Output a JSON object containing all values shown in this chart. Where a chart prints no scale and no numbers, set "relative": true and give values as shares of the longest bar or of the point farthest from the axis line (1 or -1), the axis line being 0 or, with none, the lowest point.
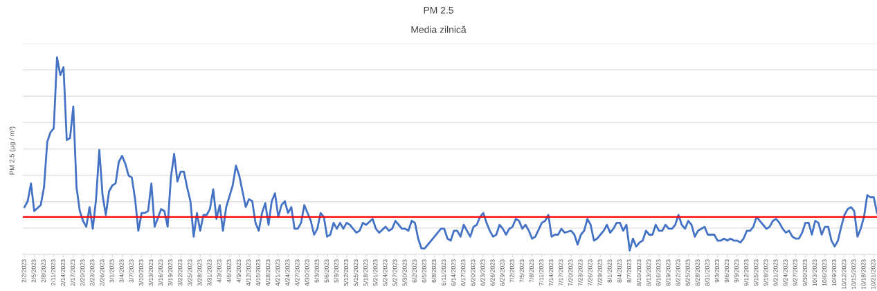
{
  "chart_data": {
    "type": "line",
    "title": "PM 2.5",
    "subtitle": "Media zilnică",
    "ylabel": "PM 2.5 (µg / m³)",
    "relative": true,
    "grid": "y",
    "legend": false,
    "marker": "none",
    "line_style": "solid",
    "xlim": [
      "2023-02-01T12:00",
      "2023-10-22"
    ],
    "xticks": [
      {
        "value": "2023-02-02",
        "label": "2/2/2023"
      },
      {
        "value": "2023-02-05",
        "label": "2/5/2023"
      },
      {
        "value": "2023-02-08",
        "label": "2/8/2023"
      },
      {
        "value": "2023-02-11",
        "label": "2/11/2023"
      },
      {
        "value": "2023-02-14",
        "label": "2/14/2023"
      },
      {
        "value": "2023-02-17",
        "label": "2/17/2023"
      },
      {
        "value": "2023-02-20",
        "label": "2/20/2023"
      },
      {
        "value": "2023-02-23",
        "label": "2/23/2023"
      },
      {
        "value": "2023-02-26",
        "label": "2/26/2023"
      },
      {
        "value": "2023-03-01",
        "label": "3/1/2023"
      },
      {
        "value": "2023-03-04",
        "label": "3/4/2023"
      },
      {
        "value": "2023-03-07",
        "label": "3/7/2023"
      },
      {
        "value": "2023-03-10",
        "label": "3/10/2023"
      },
      {
        "value": "2023-03-13",
        "label": "3/13/2023"
      },
      {
        "value": "2023-03-16",
        "label": "3/16/2023"
      },
      {
        "value": "2023-03-19",
        "label": "3/19/2023"
      },
      {
        "value": "2023-03-22",
        "label": "3/22/2023"
      },
      {
        "value": "2023-03-25",
        "label": "3/25/2023"
      },
      {
        "value": "2023-03-28",
        "label": "3/28/2023"
      },
      {
        "value": "2023-03-31",
        "label": "3/31/2023"
      },
      {
        "value": "2023-04-03",
        "label": "4/3/2023"
      },
      {
        "value": "2023-04-06",
        "label": "4/6/2023"
      },
      {
        "value": "2023-04-09",
        "label": "4/9/2023"
      },
      {
        "value": "2023-04-12",
        "label": "4/12/2023"
      },
      {
        "value": "2023-04-15",
        "label": "4/15/2023"
      },
      {
        "value": "2023-04-18",
        "label": "4/18/2023"
      },
      {
        "value": "2023-04-21",
        "label": "4/21/2023"
      },
      {
        "value": "2023-04-24",
        "label": "4/24/2023"
      },
      {
        "value": "2023-04-27",
        "label": "4/27/2023"
      },
      {
        "value": "2023-04-30",
        "label": "4/30/2023"
      },
      {
        "value": "2023-05-03",
        "label": "5/3/2023"
      },
      {
        "value": "2023-05-06",
        "label": "5/6/2023"
      },
      {
        "value": "2023-05-09",
        "label": "5/9/2023"
      },
      {
        "value": "2023-05-12",
        "label": "5/12/2023"
      },
      {
        "value": "2023-05-15",
        "label": "5/15/2023"
      },
      {
        "value": "2023-05-18",
        "label": "5/18/2023"
      },
      {
        "value": "2023-05-21",
        "label": "5/21/2023"
      },
      {
        "value": "2023-05-24",
        "label": "5/24/2023"
      },
      {
        "value": "2023-05-27",
        "label": "5/27/2023"
      },
      {
        "value": "2023-05-30",
        "label": "5/30/2023"
      },
      {
        "value": "2023-06-02",
        "label": "6/2/2023"
      },
      {
        "value": "2023-06-05",
        "label": "6/5/2023"
      },
      {
        "value": "2023-06-08",
        "label": "6/8/2023"
      },
      {
        "value": "2023-06-11",
        "label": "6/11/2023"
      },
      {
        "value": "2023-06-14",
        "label": "6/14/2023"
      },
      {
        "value": "2023-06-17",
        "label": "6/17/2023"
      },
      {
        "value": "2023-06-20",
        "label": "6/20/2023"
      },
      {
        "value": "2023-06-23",
        "label": "6/23/2023"
      },
      {
        "value": "2023-06-26",
        "label": "6/26/2023"
      },
      {
        "value": "2023-06-29",
        "label": "6/29/2023"
      },
      {
        "value": "2023-07-02",
        "label": "7/2/2023"
      },
      {
        "value": "2023-07-05",
        "label": "7/5/2023"
      },
      {
        "value": "2023-07-08",
        "label": "7/8/2023"
      },
      {
        "value": "2023-07-11",
        "label": "7/11/2023"
      },
      {
        "value": "2023-07-14",
        "label": "7/14/2023"
      },
      {
        "value": "2023-07-17",
        "label": "7/17/2023"
      },
      {
        "value": "2023-07-20",
        "label": "7/20/2023"
      },
      {
        "value": "2023-07-23",
        "label": "7/23/2023"
      },
      {
        "value": "2023-07-26",
        "label": "7/26/2023"
      },
      {
        "value": "2023-07-29",
        "label": "7/29/2023"
      },
      {
        "value": "2023-08-01",
        "label": "8/1/2023"
      },
      {
        "value": "2023-08-04",
        "label": "8/4/2023"
      },
      {
        "value": "2023-08-07",
        "label": "8/7/2023"
      },
      {
        "value": "2023-08-10",
        "label": "8/10/2023"
      },
      {
        "value": "2023-08-13",
        "label": "8/13/2023"
      },
      {
        "value": "2023-08-16",
        "label": "8/16/2023"
      },
      {
        "value": "2023-08-19",
        "label": "8/19/2023"
      },
      {
        "value": "2023-08-22",
        "label": "8/22/2023"
      },
      {
        "value": "2023-08-25",
        "label": "8/25/2023"
      },
      {
        "value": "2023-08-28",
        "label": "8/28/2023"
      },
      {
        "value": "2023-08-31",
        "label": "8/31/2023"
      },
      {
        "value": "2023-09-03",
        "label": "9/3/2023"
      },
      {
        "value": "2023-09-06",
        "label": "9/6/2023"
      },
      {
        "value": "2023-09-09",
        "label": "9/9/2023"
      },
      {
        "value": "2023-09-12",
        "label": "9/12/2023"
      },
      {
        "value": "2023-09-15",
        "label": "9/15/2023"
      },
      {
        "value": "2023-09-18",
        "label": "9/18/2023"
      },
      {
        "value": "2023-09-21",
        "label": "9/21/2023"
      },
      {
        "value": "2023-09-24",
        "label": "9/24/2023"
      },
      {
        "value": "2023-09-27",
        "label": "9/27/2023"
      },
      {
        "value": "2023-09-30",
        "label": "9/30/2023"
      },
      {
        "value": "2023-10-03",
        "label": "10/3/2023"
      },
      {
        "value": "2023-10-06",
        "label": "10/6/2023"
      },
      {
        "value": "2023-10-09",
        "label": "10/9/2023"
      },
      {
        "value": "2023-10-12",
        "label": "10/12/2023"
      },
      {
        "value": "2023-10-15",
        "label": "10/15/2023"
      },
      {
        "value": "2023-10-18",
        "label": "10/18/2023"
      },
      {
        "value": "2023-10-21",
        "label": "10/21/2023"
      }
    ],
    "ref_lines": [
      {
        "axis": "y",
        "value": 0.19,
        "color": "#ff0000",
        "line_style": "solid"
      }
    ],
    "series": [
      {
        "color": "#4472c4",
        "x": [
          "2023-02-02",
          "2023-02-03",
          "2023-02-04",
          "2023-02-05",
          "2023-02-07",
          "2023-02-08",
          "2023-02-09",
          "2023-02-10",
          "2023-02-11",
          "2023-02-12",
          "2023-02-13",
          "2023-02-14",
          "2023-02-15",
          "2023-02-16",
          "2023-02-17",
          "2023-02-18",
          "2023-02-19",
          "2023-02-20",
          "2023-02-21",
          "2023-02-22",
          "2023-02-23",
          "2023-02-24",
          "2023-02-25",
          "2023-02-26",
          "2023-02-27",
          "2023-02-28",
          "2023-03-01",
          "2023-03-02",
          "2023-03-03",
          "2023-03-04",
          "2023-03-05",
          "2023-03-06",
          "2023-03-07",
          "2023-03-08",
          "2023-03-09",
          "2023-03-10",
          "2023-03-11",
          "2023-03-12",
          "2023-03-13",
          "2023-03-14",
          "2023-03-16",
          "2023-03-17",
          "2023-03-18",
          "2023-03-19",
          "2023-03-20",
          "2023-03-21",
          "2023-03-22",
          "2023-03-23",
          "2023-03-24",
          "2023-03-25",
          "2023-03-26",
          "2023-03-27",
          "2023-03-28",
          "2023-03-29",
          "2023-03-30",
          "2023-03-31",
          "2023-04-01",
          "2023-04-02",
          "2023-04-03",
          "2023-04-04",
          "2023-04-05",
          "2023-04-07",
          "2023-04-08",
          "2023-04-09",
          "2023-04-11",
          "2023-04-12",
          "2023-04-13",
          "2023-04-14",
          "2023-04-15",
          "2023-04-16",
          "2023-04-17",
          "2023-04-18",
          "2023-04-19",
          "2023-04-20",
          "2023-04-21",
          "2023-04-22",
          "2023-04-23",
          "2023-04-24",
          "2023-04-25",
          "2023-04-26",
          "2023-04-27",
          "2023-04-28",
          "2023-04-29",
          "2023-05-01",
          "2023-05-02",
          "2023-05-03",
          "2023-05-04",
          "2023-05-05",
          "2023-05-06",
          "2023-05-07",
          "2023-05-08",
          "2023-05-09",
          "2023-05-10",
          "2023-05-11",
          "2023-05-12",
          "2023-05-13",
          "2023-05-15",
          "2023-05-16",
          "2023-05-17",
          "2023-05-18",
          "2023-05-20",
          "2023-05-21",
          "2023-05-22",
          "2023-05-24",
          "2023-05-25",
          "2023-05-26",
          "2023-05-27",
          "2023-05-28",
          "2023-05-29",
          "2023-05-30",
          "2023-05-31",
          "2023-06-01",
          "2023-06-02",
          "2023-06-03",
          "2023-06-04",
          "2023-06-05",
          "2023-06-06",
          "2023-06-07",
          "2023-06-08",
          "2023-06-10",
          "2023-06-11",
          "2023-06-12",
          "2023-06-13",
          "2023-06-14",
          "2023-06-15",
          "2023-06-16",
          "2023-06-17",
          "2023-06-18",
          "2023-06-19",
          "2023-06-20",
          "2023-06-21",
          "2023-06-22",
          "2023-06-23",
          "2023-06-24",
          "2023-06-25",
          "2023-06-26",
          "2023-06-27",
          "2023-06-28",
          "2023-06-29",
          "2023-06-30",
          "2023-07-01",
          "2023-07-02",
          "2023-07-03",
          "2023-07-04",
          "2023-07-05",
          "2023-07-06",
          "2023-07-07",
          "2023-07-08",
          "2023-07-09",
          "2023-07-11",
          "2023-07-12",
          "2023-07-13",
          "2023-07-14",
          "2023-07-15",
          "2023-07-16",
          "2023-07-17",
          "2023-07-18",
          "2023-07-20",
          "2023-07-21",
          "2023-07-22",
          "2023-07-23",
          "2023-07-24",
          "2023-07-25",
          "2023-07-26",
          "2023-07-27",
          "2023-07-28",
          "2023-07-29",
          "2023-07-30",
          "2023-07-31",
          "2023-08-01",
          "2023-08-02",
          "2023-08-03",
          "2023-08-04",
          "2023-08-05",
          "2023-08-06",
          "2023-08-07",
          "2023-08-08",
          "2023-08-09",
          "2023-08-10",
          "2023-08-11",
          "2023-08-12",
          "2023-08-13",
          "2023-08-14",
          "2023-08-15",
          "2023-08-16",
          "2023-08-17",
          "2023-08-18",
          "2023-08-19",
          "2023-08-20",
          "2023-08-21",
          "2023-08-22",
          "2023-08-23",
          "2023-08-24",
          "2023-08-25",
          "2023-08-26",
          "2023-08-27",
          "2023-08-28",
          "2023-08-29",
          "2023-08-30",
          "2023-08-31",
          "2023-09-01",
          "2023-09-02",
          "2023-09-03",
          "2023-09-04",
          "2023-09-05",
          "2023-09-06",
          "2023-09-07",
          "2023-09-08",
          "2023-09-09",
          "2023-09-10",
          "2023-09-11",
          "2023-09-12",
          "2023-09-13",
          "2023-09-14",
          "2023-09-15",
          "2023-09-16",
          "2023-09-17",
          "2023-09-18",
          "2023-09-19",
          "2023-09-20",
          "2023-09-21",
          "2023-09-22",
          "2023-09-23",
          "2023-09-24",
          "2023-09-25",
          "2023-09-26",
          "2023-09-27",
          "2023-09-28",
          "2023-09-29",
          "2023-09-30",
          "2023-10-01",
          "2023-10-02",
          "2023-10-03",
          "2023-10-04",
          "2023-10-05",
          "2023-10-06",
          "2023-10-07",
          "2023-10-08",
          "2023-10-09",
          "2023-10-10",
          "2023-10-11",
          "2023-10-12",
          "2023-10-13",
          "2023-10-14",
          "2023-10-15",
          "2023-10-16",
          "2023-10-17",
          "2023-10-18",
          "2023-10-19",
          "2023-10-20",
          "2023-10-21",
          "2023-10-22"
        ],
        "values": [
          0.24,
          0.27,
          0.36,
          0.22,
          0.25,
          0.34,
          0.57,
          0.62,
          0.64,
          1.0,
          0.91,
          0.95,
          0.58,
          0.59,
          0.75,
          0.34,
          0.22,
          0.17,
          0.14,
          0.24,
          0.13,
          0.28,
          0.53,
          0.3,
          0.2,
          0.32,
          0.35,
          0.36,
          0.47,
          0.5,
          0.46,
          0.4,
          0.39,
          0.28,
          0.12,
          0.21,
          0.21,
          0.22,
          0.36,
          0.14,
          0.23,
          0.22,
          0.14,
          0.39,
          0.51,
          0.37,
          0.42,
          0.42,
          0.34,
          0.27,
          0.09,
          0.21,
          0.12,
          0.2,
          0.2,
          0.23,
          0.33,
          0.18,
          0.25,
          0.12,
          0.24,
          0.35,
          0.45,
          0.4,
          0.24,
          0.28,
          0.27,
          0.16,
          0.12,
          0.21,
          0.26,
          0.15,
          0.27,
          0.31,
          0.19,
          0.25,
          0.27,
          0.21,
          0.24,
          0.13,
          0.13,
          0.16,
          0.25,
          0.17,
          0.1,
          0.13,
          0.21,
          0.19,
          0.09,
          0.1,
          0.16,
          0.13,
          0.16,
          0.13,
          0.16,
          0.15,
          0.11,
          0.12,
          0.16,
          0.15,
          0.18,
          0.13,
          0.11,
          0.14,
          0.12,
          0.13,
          0.17,
          0.15,
          0.13,
          0.13,
          0.12,
          0.17,
          0.16,
          0.08,
          0.03,
          0.03,
          0.05,
          0.07,
          0.09,
          0.13,
          0.13,
          0.08,
          0.07,
          0.12,
          0.12,
          0.09,
          0.15,
          0.12,
          0.09,
          0.14,
          0.15,
          0.19,
          0.21,
          0.16,
          0.12,
          0.09,
          0.1,
          0.15,
          0.13,
          0.1,
          0.13,
          0.14,
          0.18,
          0.17,
          0.13,
          0.15,
          0.12,
          0.08,
          0.09,
          0.16,
          0.17,
          0.2,
          0.09,
          0.1,
          0.1,
          0.13,
          0.11,
          0.12,
          0.1,
          0.05,
          0.1,
          0.12,
          0.18,
          0.15,
          0.07,
          0.08,
          0.1,
          0.12,
          0.15,
          0.11,
          0.13,
          0.16,
          0.16,
          0.12,
          0.15,
          0.02,
          0.08,
          0.04,
          0.06,
          0.07,
          0.12,
          0.1,
          0.1,
          0.15,
          0.12,
          0.12,
          0.15,
          0.13,
          0.13,
          0.15,
          0.2,
          0.15,
          0.13,
          0.17,
          0.15,
          0.09,
          0.12,
          0.13,
          0.14,
          0.1,
          0.1,
          0.1,
          0.07,
          0.07,
          0.08,
          0.07,
          0.08,
          0.07,
          0.07,
          0.06,
          0.08,
          0.12,
          0.12,
          0.14,
          0.19,
          0.17,
          0.15,
          0.13,
          0.14,
          0.17,
          0.18,
          0.16,
          0.13,
          0.11,
          0.12,
          0.09,
          0.08,
          0.08,
          0.11,
          0.16,
          0.16,
          0.1,
          0.17,
          0.16,
          0.1,
          0.14,
          0.14,
          0.07,
          0.04,
          0.07,
          0.14,
          0.2,
          0.23,
          0.24,
          0.22,
          0.09,
          0.13,
          0.19,
          0.3,
          0.29,
          0.29,
          0.21
        ]
      }
    ]
  }
}
